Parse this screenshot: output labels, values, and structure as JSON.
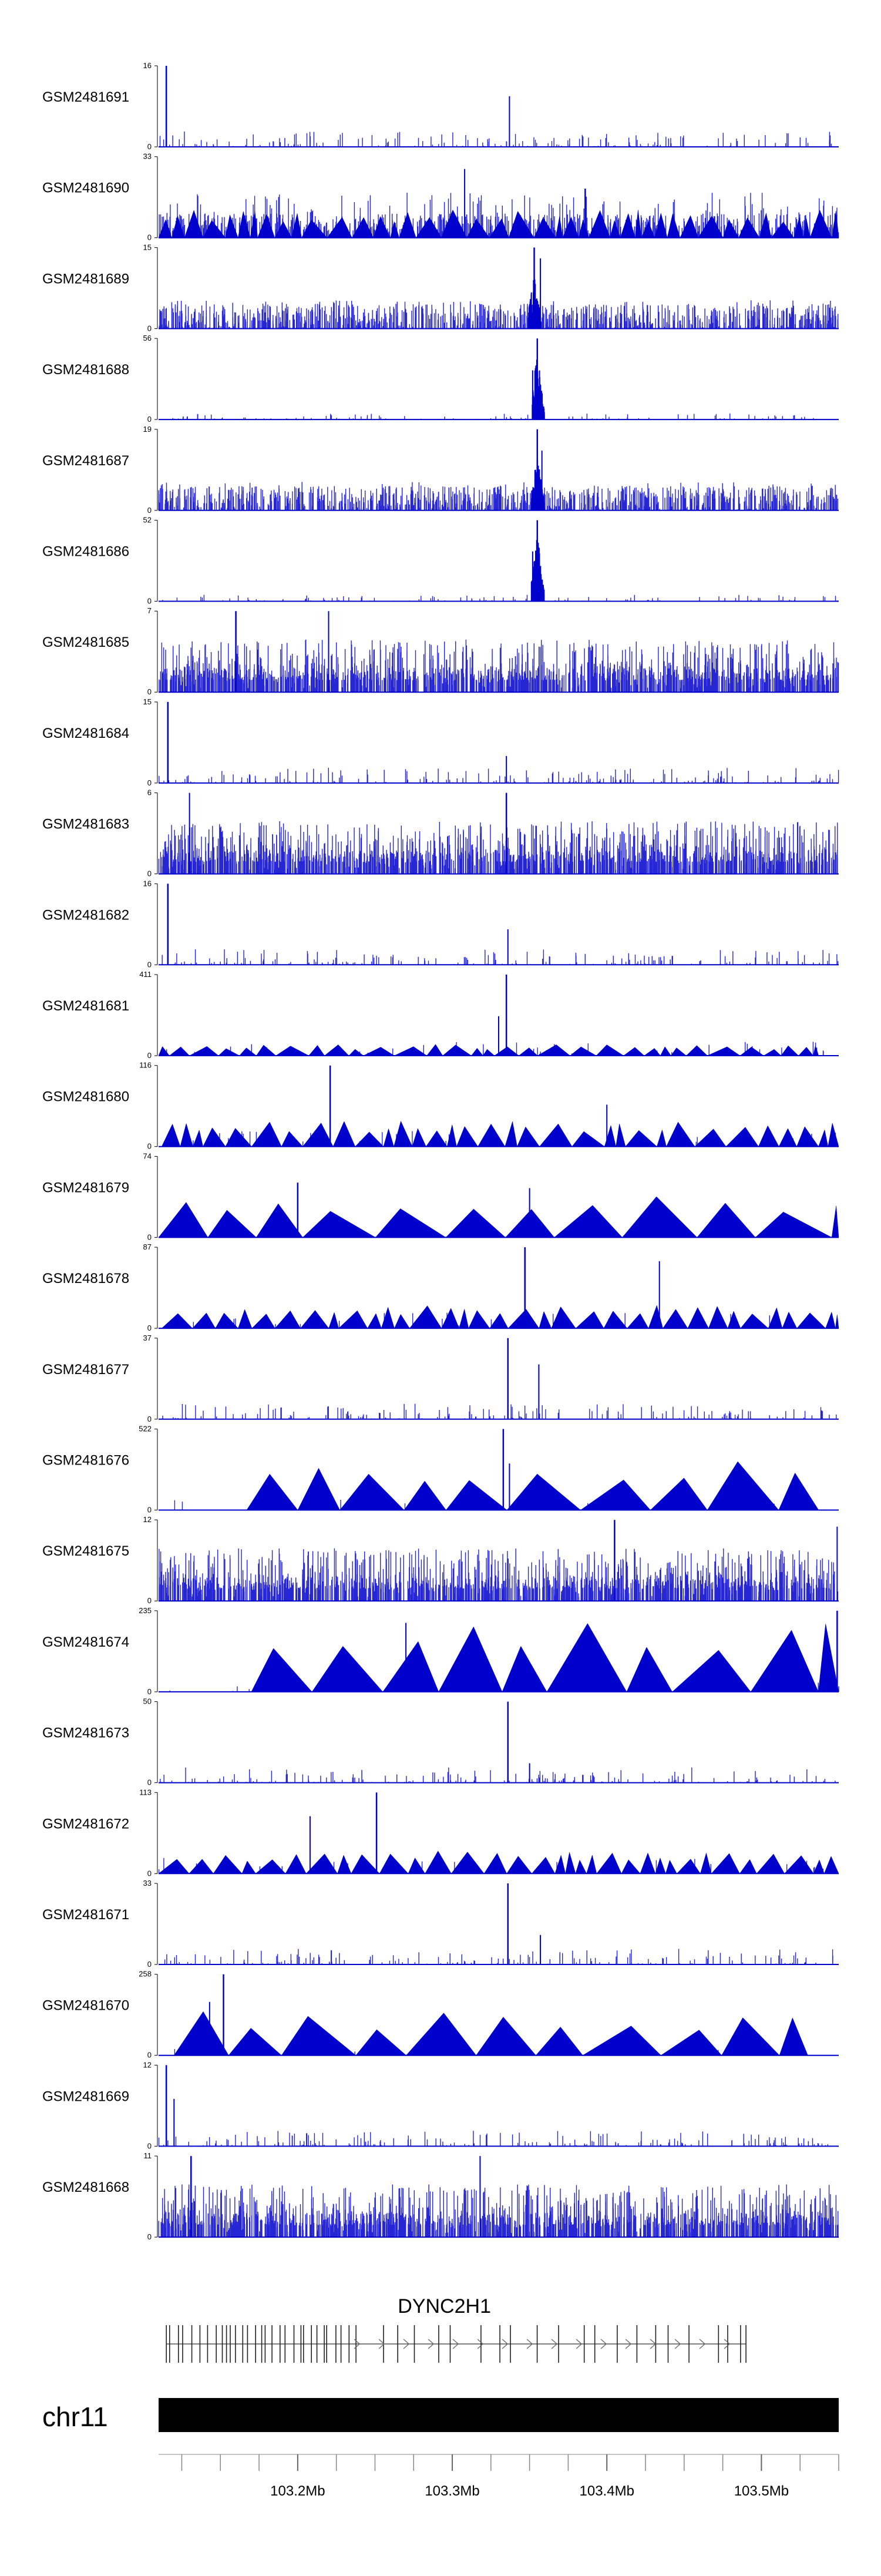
{
  "chart_data": {
    "type": "genome_browser",
    "title": "",
    "chromosome": "chr11",
    "gene": "DYNC2H1",
    "region_mb": [
      103.11,
      103.55
    ],
    "gene_span_mb": [
      103.115,
      103.49
    ],
    "x_ticks_mb": [
      103.2,
      103.3,
      103.4,
      103.5
    ],
    "x_tick_labels": [
      "103.2Mb",
      "103.3Mb",
      "103.4Mb",
      "103.5Mb"
    ],
    "track_color": "#0000cc",
    "chrom_bar_color": "#000000",
    "tracks": [
      {
        "name": "GSM2481691",
        "ymax": 16,
        "style": "sparse",
        "seed": 11,
        "peak_mb": 103.115,
        "peak": 16,
        "peak2_mb": 103.337,
        "peak2": 10
      },
      {
        "name": "GSM2481690",
        "ymax": 33,
        "style": "dense_tri",
        "seed": 23,
        "peak_mb": 103.386,
        "peak": 20,
        "peak2_mb": 103.308,
        "peak2": 28
      },
      {
        "name": "GSM2481689",
        "ymax": 15,
        "style": "dense",
        "seed": 37,
        "peak_mb": 103.353,
        "peak": 15,
        "peak2_mb": 103.357,
        "peak2": 13
      },
      {
        "name": "GSM2481688",
        "ymax": 56,
        "style": "cluster",
        "seed": 41,
        "peak_mb": 103.355,
        "peak": 56,
        "peak2_mb": 103.352,
        "peak2": 34
      },
      {
        "name": "GSM2481687",
        "ymax": 19,
        "style": "dense",
        "seed": 53,
        "peak_mb": 103.355,
        "peak": 19,
        "peak2_mb": 103.358,
        "peak2": 14
      },
      {
        "name": "GSM2481686",
        "ymax": 52,
        "style": "cluster",
        "seed": 67,
        "peak_mb": 103.355,
        "peak": 52,
        "peak2_mb": 103.352,
        "peak2": 32
      },
      {
        "name": "GSM2481685",
        "ymax": 7,
        "style": "heavy",
        "seed": 71,
        "peak_mb": 103.16,
        "peak": 7,
        "peak2_mb": 103.22,
        "peak2": 7
      },
      {
        "name": "GSM2481684",
        "ymax": 15,
        "style": "sparse",
        "seed": 83,
        "peak_mb": 103.116,
        "peak": 15,
        "peak2_mb": 103.335,
        "peak2": 5
      },
      {
        "name": "GSM2481683",
        "ymax": 6,
        "style": "heavy",
        "seed": 97,
        "peak_mb": 103.335,
        "peak": 6,
        "peak2_mb": 103.13,
        "peak2": 6
      },
      {
        "name": "GSM2481682",
        "ymax": 16,
        "style": "sparse",
        "seed": 101,
        "peak_mb": 103.116,
        "peak": 16,
        "peak2_mb": 103.336,
        "peak2": 7
      },
      {
        "name": "GSM2481681",
        "ymax": 411,
        "style": "tri",
        "seed": 113,
        "tri_start_mb": 103.11,
        "tri_end_mb": 103.537,
        "tri_amp": 0.14,
        "peak_mb": 103.335,
        "peak": 411,
        "peak2_mb": 103.33,
        "peak2": 200
      },
      {
        "name": "GSM2481680",
        "ymax": 116,
        "style": "tri",
        "seed": 127,
        "tri_start_mb": 103.112,
        "tri_end_mb": 103.55,
        "tri_amp": 0.32,
        "peak_mb": 103.221,
        "peak": 116,
        "peak2_mb": 103.4,
        "peak2": 60
      },
      {
        "name": "GSM2481679",
        "ymax": 74,
        "style": "tri_big",
        "seed": 131,
        "tri_start_mb": 103.11,
        "tri_end_mb": 103.55,
        "tri_amp": 0.52,
        "peak_mb": 103.2,
        "peak": 50,
        "peak2_mb": 103.35,
        "peak2": 45
      },
      {
        "name": "GSM2481678",
        "ymax": 87,
        "style": "tri",
        "seed": 137,
        "tri_start_mb": 103.112,
        "tri_end_mb": 103.55,
        "tri_amp": 0.3,
        "peak_mb": 103.347,
        "peak": 87,
        "peak2_mb": 103.434,
        "peak2": 72
      },
      {
        "name": "GSM2481677",
        "ymax": 37,
        "style": "sparse",
        "seed": 149,
        "peak_mb": 103.336,
        "peak": 37,
        "peak2_mb": 103.356,
        "peak2": 25
      },
      {
        "name": "GSM2481676",
        "ymax": 522,
        "style": "tri_big",
        "seed": 151,
        "tri_start_mb": 103.167,
        "tri_end_mb": 103.537,
        "tri_amp": 0.62,
        "peak_mb": 103.333,
        "peak": 522,
        "peak2_mb": 103.337,
        "peak2": 300
      },
      {
        "name": "GSM2481675",
        "ymax": 12,
        "style": "heavy",
        "seed": 163,
        "peak_mb": 103.405,
        "peak": 12,
        "peak2_mb": 103.549,
        "peak2": 11
      },
      {
        "name": "GSM2481674",
        "ymax": 235,
        "style": "tri_big",
        "seed": 167,
        "tri_start_mb": 103.17,
        "tri_end_mb": 103.55,
        "tri_amp": 0.85,
        "peak_mb": 103.549,
        "peak": 235,
        "peak2_mb": 103.27,
        "peak2": 200
      },
      {
        "name": "GSM2481673",
        "ymax": 50,
        "style": "sparse",
        "seed": 173,
        "peak_mb": 103.336,
        "peak": 50,
        "peak2_mb": 103.35,
        "peak2": 12
      },
      {
        "name": "GSM2481672",
        "ymax": 113,
        "style": "tri",
        "seed": 179,
        "tri_start_mb": 103.11,
        "tri_end_mb": 103.55,
        "tri_amp": 0.28,
        "peak_mb": 103.251,
        "peak": 113,
        "peak2_mb": 103.208,
        "peak2": 80
      },
      {
        "name": "GSM2481671",
        "ymax": 33,
        "style": "sparse",
        "seed": 181,
        "peak_mb": 103.336,
        "peak": 33,
        "peak2_mb": 103.357,
        "peak2": 12
      },
      {
        "name": "GSM2481670",
        "ymax": 258,
        "style": "tri_big",
        "seed": 191,
        "tri_start_mb": 103.12,
        "tri_end_mb": 103.53,
        "tri_amp": 0.55,
        "peak_mb": 103.152,
        "peak": 258,
        "peak2_mb": 103.143,
        "peak2": 170
      },
      {
        "name": "GSM2481669",
        "ymax": 12,
        "style": "sparse",
        "seed": 193,
        "peak_mb": 103.115,
        "peak": 12,
        "peak2_mb": 103.12,
        "peak2": 7
      },
      {
        "name": "GSM2481668",
        "ymax": 11,
        "style": "heavy",
        "seed": 197,
        "peak_mb": 103.131,
        "peak": 11,
        "peak2_mb": 103.318,
        "peak2": 11
      }
    ]
  }
}
